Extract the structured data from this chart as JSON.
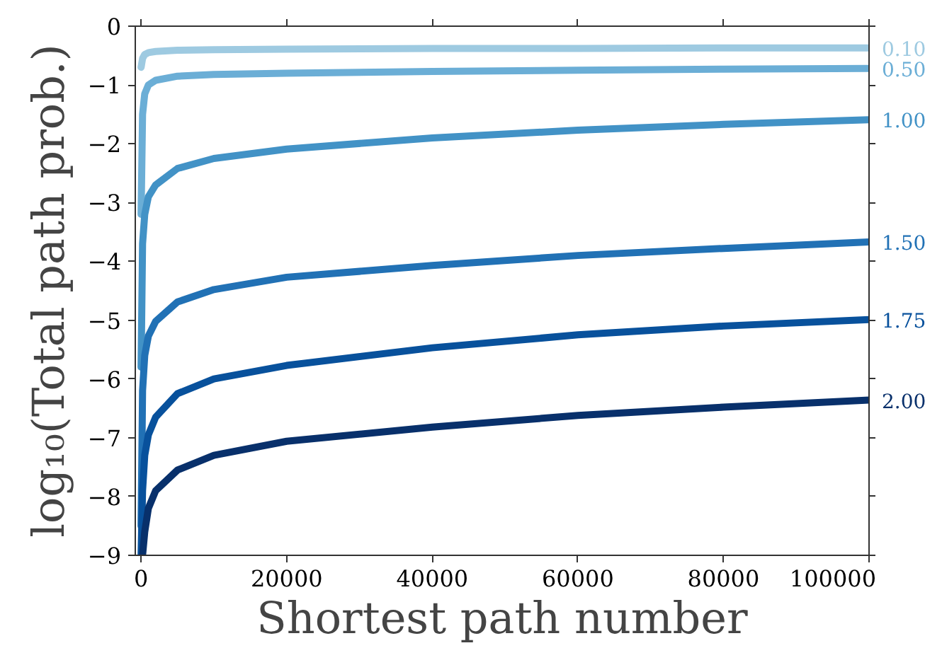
{
  "chart_data": {
    "type": "line",
    "xlabel": "Shortest path number",
    "ylabel": "log₁₀(Total path prob.)",
    "x": [
      0,
      200,
      500,
      1000,
      2000,
      5000,
      10000,
      20000,
      40000,
      60000,
      80000,
      100000
    ],
    "xlim": [
      -800,
      100000
    ],
    "ylim": [
      -9,
      0
    ],
    "xticks": [
      0,
      20000,
      40000,
      60000,
      80000,
      100000
    ],
    "yticks": [
      -9,
      -8,
      -7,
      -6,
      -5,
      -4,
      -3,
      -2,
      -1,
      0
    ],
    "grid": false,
    "legend": false,
    "marker": "none",
    "line_style": "solid",
    "series": [
      {
        "name": "0.10",
        "color": "#9ecae1",
        "values": [
          -0.7,
          -0.55,
          -0.48,
          -0.45,
          -0.43,
          -0.41,
          -0.4,
          -0.39,
          -0.38,
          -0.38,
          -0.37,
          -0.37
        ]
      },
      {
        "name": "0.50",
        "color": "#6baed6",
        "values": [
          -3.2,
          -1.5,
          -1.15,
          -1.0,
          -0.92,
          -0.85,
          -0.82,
          -0.8,
          -0.77,
          -0.75,
          -0.73,
          -0.72
        ]
      },
      {
        "name": "1.00",
        "color": "#4292c6",
        "values": [
          -5.8,
          -3.7,
          -3.2,
          -2.9,
          -2.7,
          -2.42,
          -2.25,
          -2.09,
          -1.9,
          -1.77,
          -1.67,
          -1.59
        ]
      },
      {
        "name": "1.50",
        "color": "#2171b5",
        "values": [
          -8.5,
          -6.2,
          -5.6,
          -5.27,
          -5.02,
          -4.69,
          -4.48,
          -4.27,
          -4.07,
          -3.9,
          -3.78,
          -3.67
        ]
      },
      {
        "name": "1.75",
        "color": "#08519c",
        "values": [
          -9.0,
          -7.9,
          -7.3,
          -6.95,
          -6.65,
          -6.25,
          -6.0,
          -5.77,
          -5.47,
          -5.25,
          -5.1,
          -4.99
        ]
      },
      {
        "name": "2.00",
        "color": "#08306b",
        "values": [
          null,
          -9.0,
          -8.6,
          -8.2,
          -7.9,
          -7.55,
          -7.3,
          -7.06,
          -6.82,
          -6.62,
          -6.48,
          -6.36
        ]
      }
    ]
  }
}
